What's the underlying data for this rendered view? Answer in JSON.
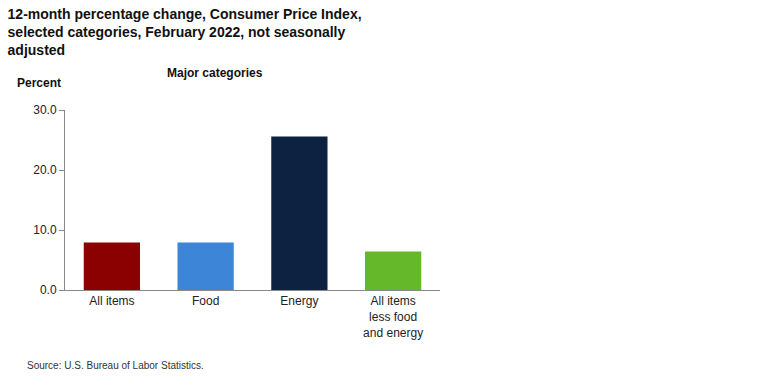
{
  "chart_data": {
    "type": "bar",
    "title": "12-month percentage change, Consumer Price Index, selected categories, February 2022, not seasonally adjusted",
    "subtitle": "Major categories",
    "y_label": "Percent",
    "source": "Source: U.S. Bureau of Labor Statistics.",
    "categories": [
      "All items",
      "Food",
      "Energy",
      "All items less food and energy"
    ],
    "values": [
      7.9,
      7.9,
      25.6,
      6.4
    ],
    "colors": [
      "#8b0000",
      "#3d85d6",
      "#0d2240",
      "#64b82a"
    ],
    "ylim": [
      0,
      30
    ],
    "yticks": [
      {
        "value": 0,
        "label": "0.0"
      },
      {
        "value": 10,
        "label": "10.0"
      },
      {
        "value": 20,
        "label": "20.0"
      },
      {
        "value": 30,
        "label": "30.0"
      }
    ],
    "grid": false,
    "data_labels": false
  }
}
